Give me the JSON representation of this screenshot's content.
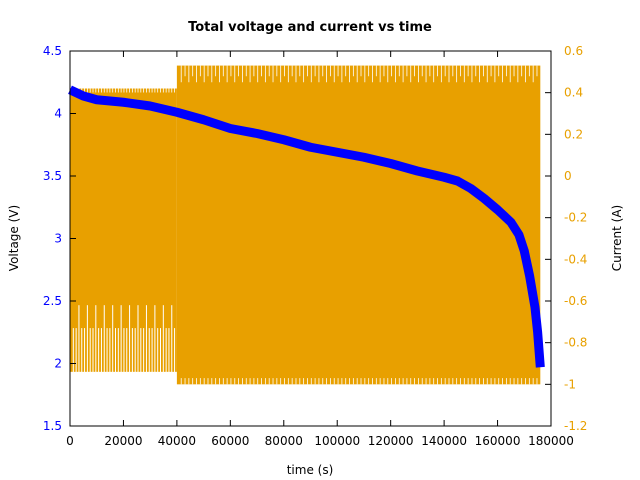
{
  "chart_data": {
    "type": "line",
    "title": "Total voltage and current vs time",
    "xlabel": "time (s)",
    "ylabel": "Voltage (V)",
    "y2label": "Current (A)",
    "xlim": [
      0,
      180000
    ],
    "ylim": [
      1.5,
      4.5
    ],
    "y2lim": [
      -1.2,
      0.6
    ],
    "xticks": [
      "0",
      "20000",
      "40000",
      "60000",
      "80000",
      "100000",
      "120000",
      "140000",
      "160000",
      "180000"
    ],
    "yticks": [
      "1.5",
      "2",
      "2.5",
      "3",
      "3.5",
      "4",
      "4.5"
    ],
    "y2ticks": [
      "-1.2",
      "-1",
      "-0.8",
      "-0.6",
      "-0.4",
      "-0.2",
      "0",
      "0.2",
      "0.4",
      "0.6"
    ],
    "colors": {
      "voltage": "#0000ff",
      "current": "#e8a000",
      "left_axis": "#0000ff",
      "right_axis": "#e8a000"
    },
    "voltage": {
      "x": [
        0,
        5000,
        10000,
        20000,
        30000,
        40000,
        50000,
        60000,
        70000,
        80000,
        90000,
        100000,
        110000,
        120000,
        130000,
        140000,
        145000,
        150000,
        155000,
        160000,
        165000,
        168000,
        170000,
        172000,
        174000,
        175000,
        176000
      ],
      "y": [
        4.19,
        4.14,
        4.11,
        4.09,
        4.06,
        4.01,
        3.95,
        3.88,
        3.84,
        3.79,
        3.73,
        3.69,
        3.65,
        3.6,
        3.54,
        3.49,
        3.46,
        3.4,
        3.32,
        3.23,
        3.13,
        3.03,
        2.9,
        2.7,
        2.45,
        2.25,
        1.97
      ]
    },
    "current": {
      "segments": [
        {
          "x_start": 0,
          "x_end": 40000,
          "max": 0.42,
          "min": -0.94,
          "pulse_low": -0.73,
          "pulse_deep": -0.62
        },
        {
          "x_start": 40000,
          "x_end": 176000,
          "max": 0.53,
          "min": -1.0,
          "pulse_high": 0.45,
          "pulse_low": -0.97
        }
      ]
    }
  }
}
